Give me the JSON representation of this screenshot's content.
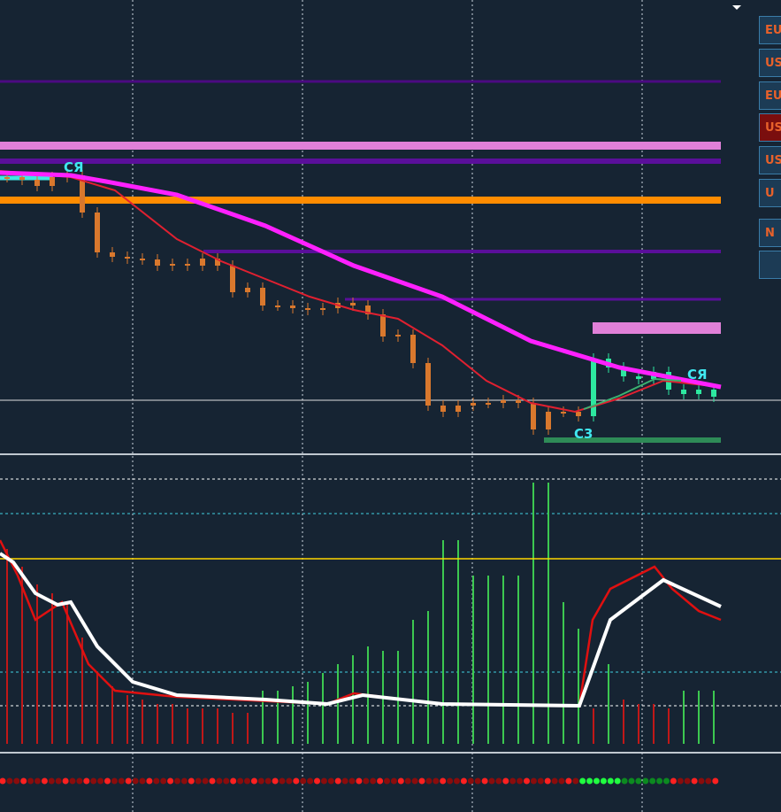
{
  "buttons": [
    "EU",
    "US",
    "EU",
    "US",
    "US",
    "U",
    "N",
    ""
  ],
  "annotations": [
    "CЯ",
    "C3",
    "CЯ"
  ],
  "price_panel": {
    "ylim": [
      0,
      101
    ],
    "candle_groups": [
      {
        "color": "#d9782d",
        "closes": [
          62,
          61.4,
          60,
          62,
          62.4,
          54,
          45,
          44,
          43.6,
          43.4,
          42,
          42.4,
          42,
          43.6,
          42,
          36,
          37,
          33,
          33,
          32.4,
          32,
          32.4,
          33.6,
          33,
          31,
          26,
          26.4,
          20,
          10.4,
          9,
          10.4,
          11,
          11,
          11.6,
          11,
          5,
          9,
          9,
          8
        ]
      },
      {
        "color": "#2de8a0",
        "closes": [
          21,
          19,
          17,
          16.4,
          18,
          14,
          13,
          14,
          12.4
        ]
      }
    ]
  },
  "histogram": {
    "values": [
      -220,
      -200,
      -180,
      -170,
      -160,
      -120,
      -80,
      -65,
      -55,
      -50,
      -45,
      -45,
      -40,
      -40,
      -40,
      -35,
      -35,
      60,
      60,
      65,
      70,
      80,
      90,
      100,
      110,
      105,
      105,
      140,
      150,
      230,
      230,
      190,
      190,
      190,
      190,
      295,
      295,
      160,
      130,
      -40,
      90,
      -50,
      -45,
      -45,
      -40,
      60,
      60,
      60
    ]
  }
}
